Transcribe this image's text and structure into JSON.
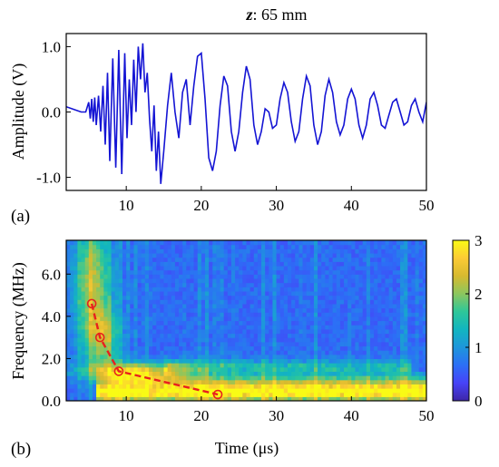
{
  "title": {
    "var": "z",
    "rest": ": 65 mm"
  },
  "panel_a_label": "(a)",
  "panel_b_label": "(b)",
  "chart_data": [
    {
      "type": "line",
      "panel": "(a)",
      "ylabel": "Amplitude (V)",
      "xlabel": "",
      "xlim": [
        2,
        50
      ],
      "ylim": [
        -1.2,
        1.2
      ],
      "xticks": [
        10,
        20,
        30,
        40,
        50
      ],
      "yticks": [
        1.0,
        0.0,
        -1.0
      ],
      "ytick_labels": [
        "1.0",
        "0.0",
        "-1.0"
      ],
      "line_color": "#1414d4",
      "series": [
        {
          "x": [
            2.0,
            3.0,
            4.0,
            4.6,
            5.0,
            5.2,
            5.4,
            5.6,
            5.8,
            6.0,
            6.3,
            6.6,
            6.9,
            7.2,
            7.5,
            7.8,
            8.2,
            8.6,
            9.0,
            9.4,
            9.8,
            10.1,
            10.4,
            10.7,
            11.0,
            11.3,
            11.6,
            11.9,
            12.2,
            12.5,
            12.8,
            13.1,
            13.4,
            13.7,
            14.0,
            14.3,
            14.6,
            15.0,
            15.5,
            16.0,
            16.5,
            17.0,
            17.5,
            18.0,
            18.5,
            19.0,
            19.5,
            20.0,
            20.5,
            21.0,
            21.5,
            22.0,
            22.5,
            23.0,
            23.5,
            24.0,
            24.5,
            25.0,
            25.5,
            26.0,
            26.5,
            27.0,
            27.5,
            28.0,
            28.5,
            29.0,
            29.5,
            30.0,
            30.5,
            31.0,
            31.5,
            32.0,
            32.5,
            33.0,
            33.5,
            34.0,
            34.5,
            35.0,
            35.5,
            36.0,
            36.5,
            37.0,
            37.5,
            38.0,
            38.5,
            39.0,
            39.5,
            40.0,
            40.5,
            41.0,
            41.5,
            42.0,
            42.5,
            43.0,
            43.5,
            44.0,
            44.5,
            45.0,
            45.5,
            46.0,
            46.5,
            47.0,
            47.5,
            48.0,
            48.5,
            49.0,
            49.5,
            50.0
          ],
          "y": [
            0.08,
            0.04,
            0.0,
            0.0,
            0.15,
            -0.1,
            0.2,
            -0.15,
            0.22,
            -0.2,
            0.25,
            -0.3,
            0.4,
            -0.5,
            0.6,
            -0.75,
            0.82,
            -0.85,
            0.95,
            -0.95,
            0.9,
            -0.4,
            0.5,
            -0.2,
            0.8,
            0.0,
            1.0,
            0.5,
            1.05,
            0.3,
            0.6,
            -0.1,
            -0.6,
            0.1,
            -0.9,
            -0.3,
            -1.1,
            -0.6,
            0.1,
            0.6,
            0.0,
            -0.4,
            0.3,
            0.5,
            -0.2,
            0.4,
            0.85,
            0.9,
            0.2,
            -0.7,
            -0.9,
            -0.6,
            0.1,
            0.55,
            0.4,
            -0.3,
            -0.6,
            -0.3,
            0.3,
            0.7,
            0.5,
            -0.2,
            -0.5,
            -0.3,
            0.05,
            0.0,
            -0.25,
            -0.2,
            0.2,
            0.45,
            0.3,
            -0.15,
            -0.45,
            -0.3,
            0.2,
            0.55,
            0.4,
            -0.2,
            -0.5,
            -0.3,
            0.25,
            0.5,
            0.3,
            -0.15,
            -0.35,
            -0.2,
            0.2,
            0.35,
            0.2,
            -0.2,
            -0.4,
            -0.2,
            0.2,
            0.3,
            0.1,
            -0.2,
            -0.25,
            -0.05,
            0.15,
            0.2,
            0.0,
            -0.2,
            -0.15,
            0.1,
            0.2,
            0.0,
            -0.15,
            0.15
          ]
        }
      ]
    },
    {
      "type": "heatmap",
      "panel": "(b)",
      "xlabel": "Time (μs)",
      "ylabel": "Frequency (MHz)",
      "xlim": [
        2,
        50
      ],
      "ylim": [
        0,
        7.6
      ],
      "xticks": [
        10,
        20,
        30,
        40,
        50
      ],
      "yticks": [
        0.0,
        2.0,
        4.0,
        6.0
      ],
      "ytick_labels": [
        "0.0",
        "2.0",
        "4.0",
        "6.0"
      ],
      "colorbar": {
        "min": 0,
        "max": 3,
        "ticks": [
          0,
          1,
          2,
          3
        ]
      },
      "colormap": [
        "#3e26a8",
        "#4743f8",
        "#2c6ff6",
        "#1e96db",
        "#12b5c0",
        "#2ec799",
        "#8cc65e",
        "#d7ba2f",
        "#fccb35",
        "#f9fb15"
      ],
      "trajectory": {
        "color": "#e8201e",
        "x": [
          5.4,
          6.5,
          9.0,
          22.2
        ],
        "y": [
          4.6,
          3.0,
          1.4,
          0.3
        ]
      }
    }
  ]
}
